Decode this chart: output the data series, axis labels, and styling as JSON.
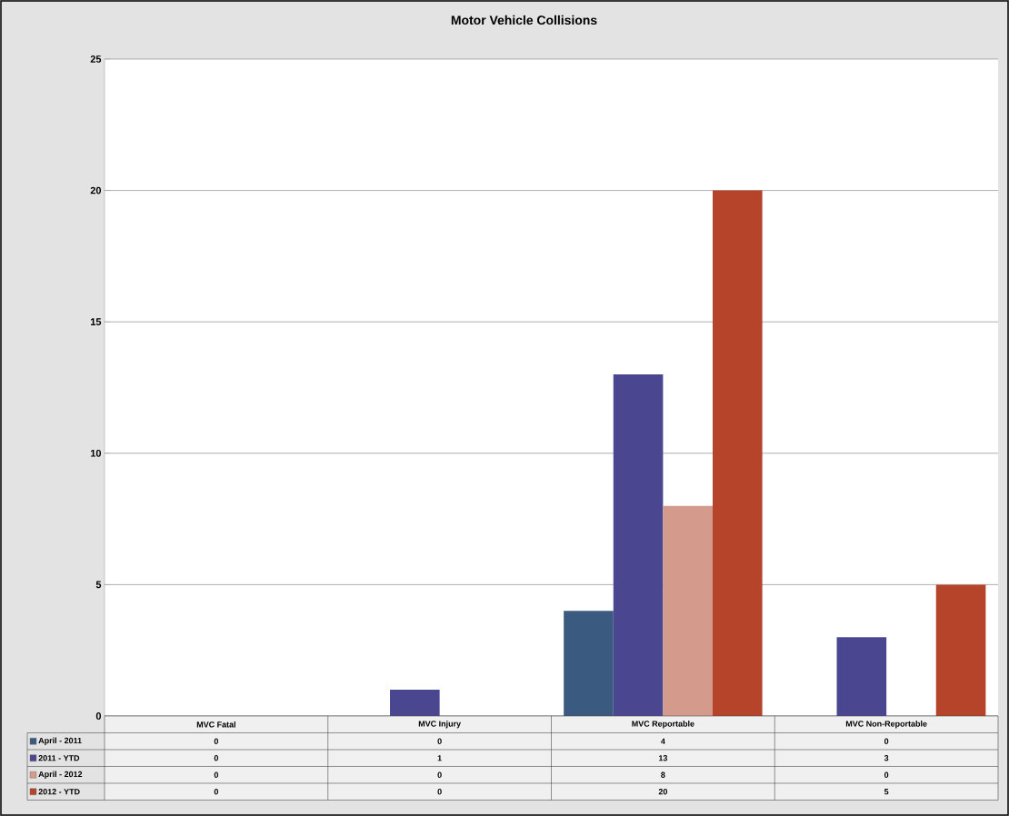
{
  "chart_data": {
    "type": "bar",
    "title": "Motor Vehicle Collisions",
    "categories": [
      "MVC Fatal",
      "MVC Injury",
      "MVC Reportable",
      "MVC Non-Reportable"
    ],
    "series": [
      {
        "name": "April - 2011",
        "color": "#3b5a80",
        "values": [
          0,
          0,
          4,
          0
        ]
      },
      {
        "name": "2011 - YTD",
        "color": "#4b4690",
        "values": [
          0,
          1,
          13,
          3
        ]
      },
      {
        "name": "April - 2012",
        "color": "#d49a8b",
        "values": [
          0,
          0,
          8,
          0
        ]
      },
      {
        "name": "2012 - YTD",
        "color": "#b5442b",
        "values": [
          0,
          0,
          20,
          5
        ]
      }
    ],
    "ylim": [
      0,
      25
    ],
    "yticks": [
      0,
      5,
      10,
      15,
      20,
      25
    ],
    "grid": "y",
    "legend": "bottom left",
    "data_labels": true
  }
}
